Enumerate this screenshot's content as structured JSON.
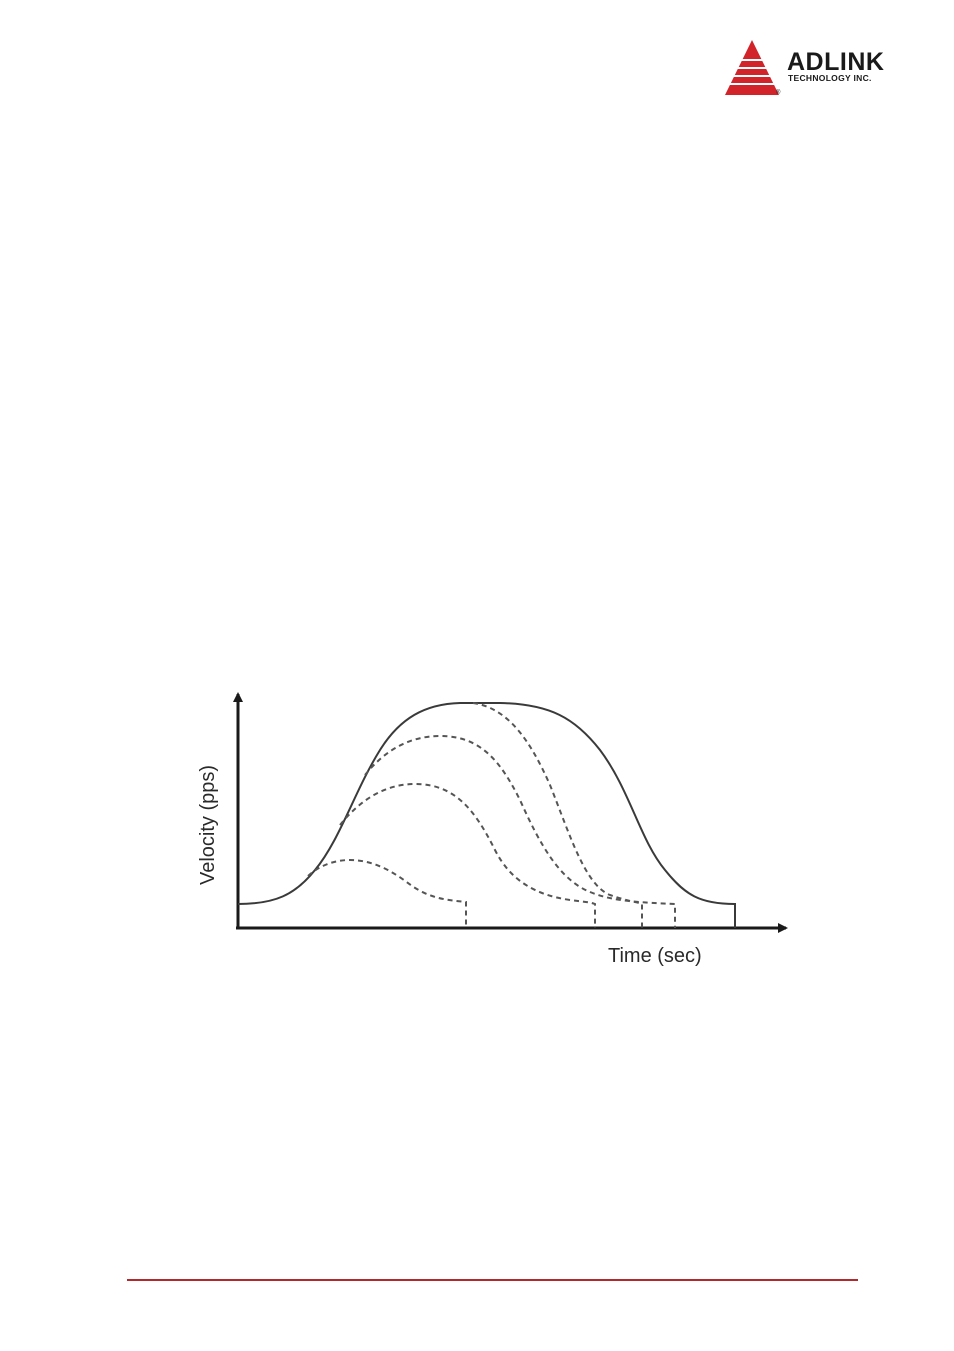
{
  "header": {
    "logo": {
      "name": "ADLINK",
      "subtitle": "TECHNOLOGY INC.",
      "registered": "®",
      "brand_color": "#d2232a"
    }
  },
  "figure": {
    "x_axis_label": "Time (sec)",
    "y_axis_label": "Velocity (pps)",
    "line_color": "#3a3a3a"
  },
  "footer": {
    "rule_color": "#b3282d"
  }
}
